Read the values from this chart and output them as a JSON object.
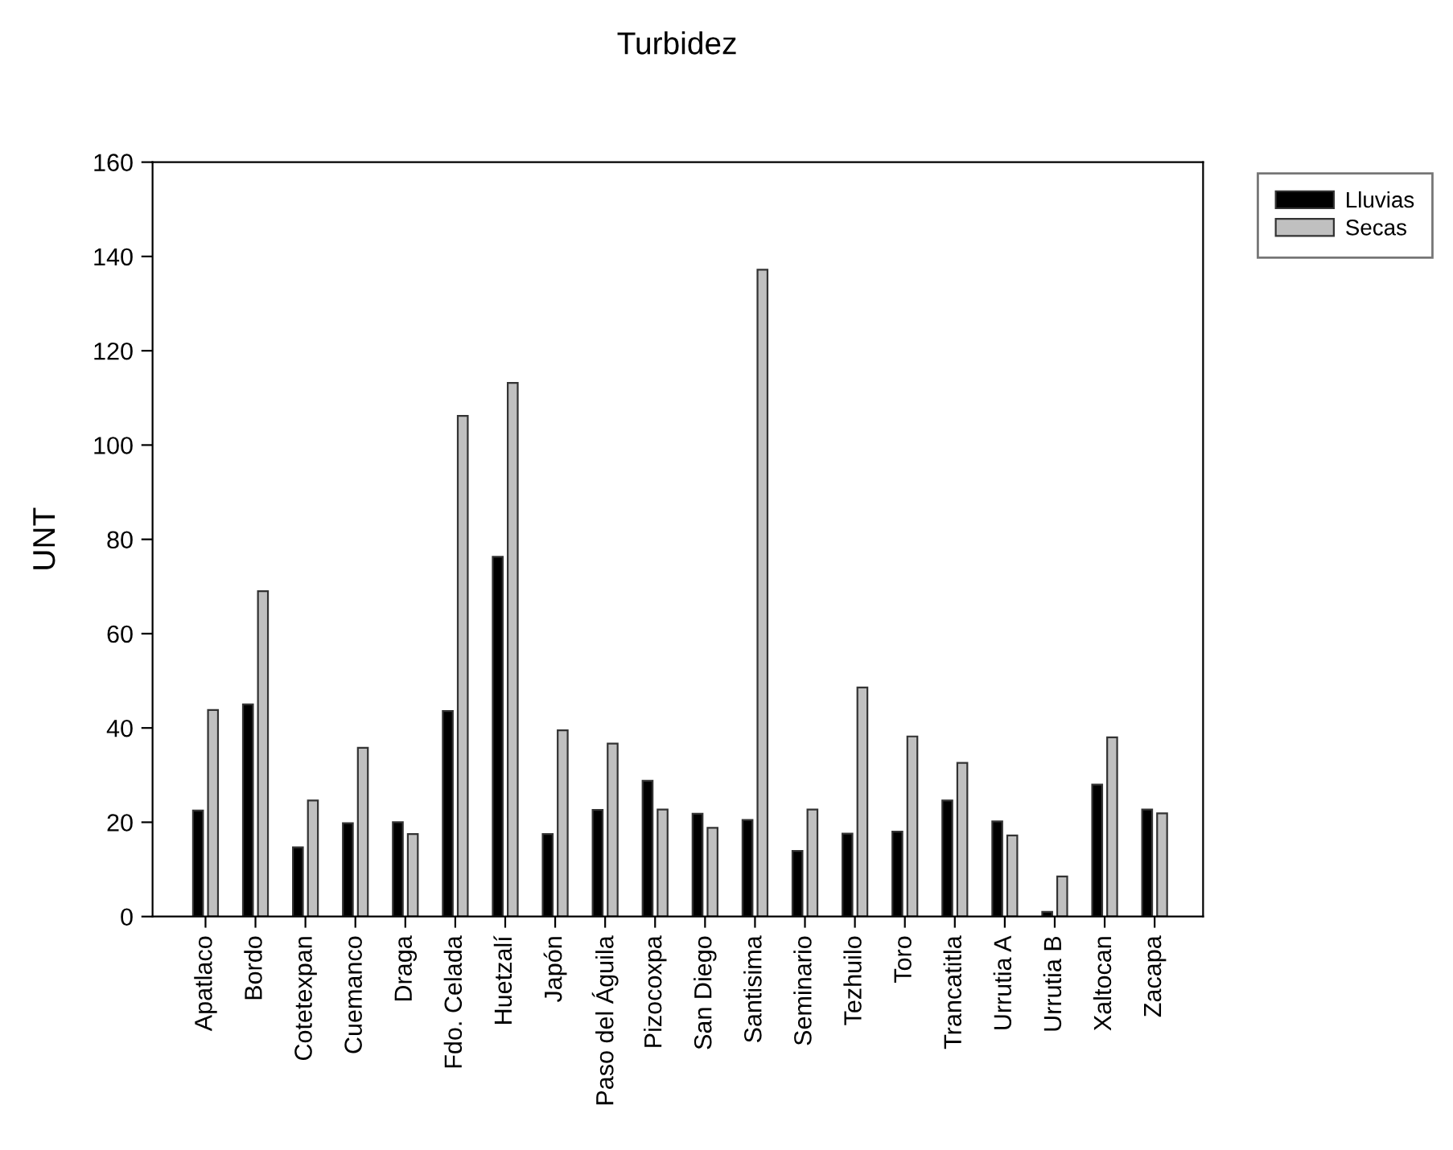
{
  "chart_data": {
    "type": "bar",
    "title": "Turbidez",
    "ylabel": "UNT",
    "categories": [
      "Apatlaco",
      "Bordo",
      "Cotetexpan",
      "Cuemanco",
      "Draga",
      "Fdo. Celada",
      "Huetzalí",
      "Japón",
      "Paso del Águila",
      "Pizocoxpa",
      "San Diego",
      "Santisima",
      "Seminario",
      "Tezhuilo",
      "Toro",
      "Trancatitla",
      "Urrutia A",
      "Urrutia B",
      "Xaltocan",
      "Zacapa"
    ],
    "series": [
      {
        "name": "Lluvias",
        "color": "#000000",
        "values": [
          22.5,
          45,
          14.7,
          19.8,
          20,
          43.6,
          76.3,
          17.5,
          22.6,
          28.8,
          21.8,
          20.5,
          13.9,
          17.6,
          18,
          24.6,
          20.2,
          1,
          28,
          22.7
        ]
      },
      {
        "name": "Secas",
        "color": "#c0c0c0",
        "values": [
          43.8,
          69,
          24.6,
          35.8,
          17.5,
          106.2,
          113.2,
          39.5,
          36.7,
          22.7,
          18.8,
          137.2,
          22.7,
          48.6,
          38.2,
          32.6,
          17.2,
          8.5,
          38,
          21.9
        ]
      }
    ],
    "ylim": [
      0,
      160
    ],
    "yticks": [
      0,
      20,
      40,
      60,
      80,
      100,
      120,
      140,
      160
    ],
    "grid": false,
    "legend": "top right"
  }
}
